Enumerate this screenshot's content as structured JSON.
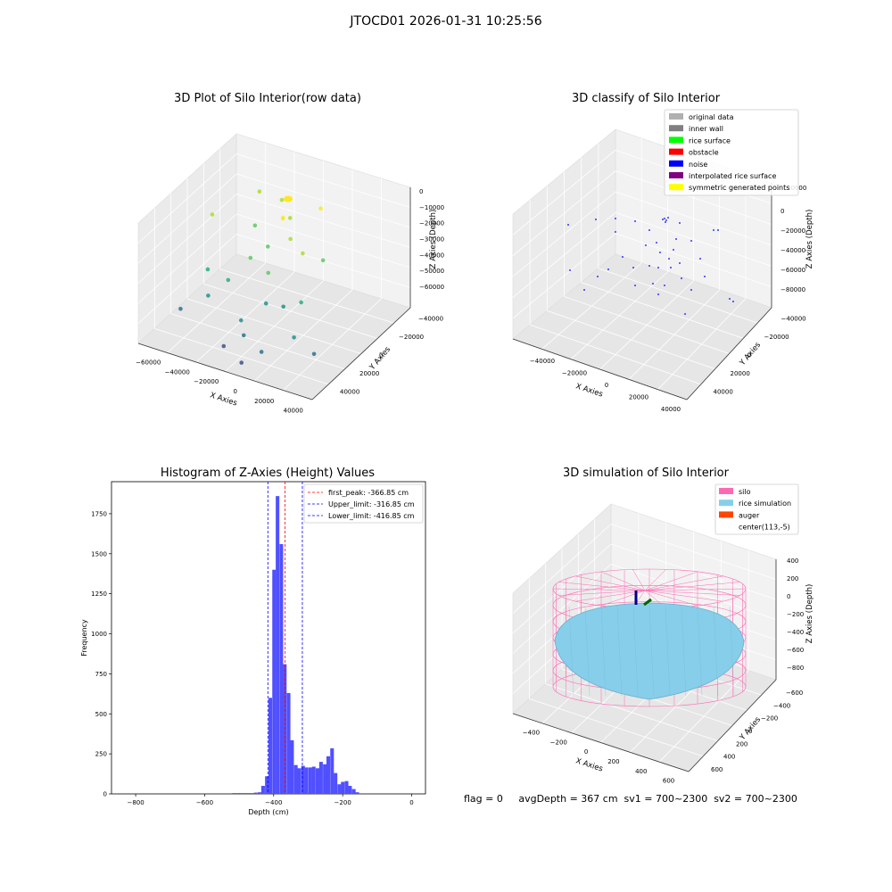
{
  "suptitle": "JTOCD01 2026-01-31 10:25:56",
  "info_text": "flag = 0     avgDepth = 367 cm  sv1 = 700~2300  sv2 = 700~2300",
  "colors": {
    "original": "#b0b0b0",
    "inner_wall": "#808080",
    "rice_surface": "#00ff00",
    "obstacle": "#ff0000",
    "noise": "#0000ff",
    "interp": "#800080",
    "sym": "#ffff00",
    "silo": "#ff69b4",
    "rice_sim": "#87ceeb",
    "auger": "#ff4500",
    "hist": "#5050ff"
  },
  "chart_data": [
    {
      "type": "scatter",
      "title": "3D Plot of Silo Interior(row data)",
      "xlabel": "X Axies",
      "ylabel": "Y Axies",
      "zlabel": "Z Axies (Depth)",
      "x_ticks": [
        "−60000",
        "−40000",
        "−20000",
        "0",
        "20000",
        "40000"
      ],
      "y_ticks": [
        "40000",
        "20000",
        "0",
        "−20000",
        "−40000"
      ],
      "z_ticks": [
        "0",
        "−10000",
        "−20000",
        "−30000",
        "−40000",
        "−50000",
        "−60000"
      ],
      "points": [
        {
          "x": -5000,
          "y": 5000,
          "z": -4000
        },
        {
          "x": -5000,
          "y": 5000,
          "z": -4500
        },
        {
          "x": -40000,
          "y": 35000,
          "z": -15000
        },
        {
          "x": -22000,
          "y": 30000,
          "z": -12000
        },
        {
          "x": -55000,
          "y": 10000,
          "z": -20000
        },
        {
          "x": 5000,
          "y": 28000,
          "z": -8000
        },
        {
          "x": -10000,
          "y": 20000,
          "z": -14000
        },
        {
          "x": -30000,
          "y": 15000,
          "z": -22000
        },
        {
          "x": -2000,
          "y": 8000,
          "z": -18000
        },
        {
          "x": -15000,
          "y": 5000,
          "z": -25000
        },
        {
          "x": 10000,
          "y": 2000,
          "z": -20000
        },
        {
          "x": -20000,
          "y": -5000,
          "z": -28000
        },
        {
          "x": -5000,
          "y": -10000,
          "z": -30000
        },
        {
          "x": 15000,
          "y": 15000,
          "z": -30000
        },
        {
          "x": 20000,
          "y": -15000,
          "z": -38000
        },
        {
          "x": -45000,
          "y": -10000,
          "z": -40000
        },
        {
          "x": -25000,
          "y": -20000,
          "z": -35000
        },
        {
          "x": 0,
          "y": -20000,
          "z": -42000
        },
        {
          "x": 5000,
          "y": -10000,
          "z": -48000
        },
        {
          "x": -10000,
          "y": -30000,
          "z": -50000
        },
        {
          "x": -35000,
          "y": -25000,
          "z": -45000
        },
        {
          "x": 25000,
          "y": -30000,
          "z": -50000
        },
        {
          "x": -5000,
          "y": -35000,
          "z": -55000
        },
        {
          "x": 10000,
          "y": -40000,
          "z": -58000
        },
        {
          "x": 35000,
          "y": -25000,
          "z": -60000
        },
        {
          "x": -15000,
          "y": -40000,
          "z": -62000
        },
        {
          "x": 0,
          "y": -45000,
          "z": -65000
        },
        {
          "x": -50000,
          "y": -30000,
          "z": -55000
        }
      ]
    },
    {
      "type": "scatter",
      "title": "3D classify of Silo Interior",
      "xlabel": "X Axies",
      "ylabel": "Y Axies",
      "zlabel": "Z Axies (Depth)",
      "x_ticks": [
        "−40000",
        "−20000",
        "0",
        "20000",
        "40000"
      ],
      "y_ticks": [
        "40000",
        "20000",
        "0",
        "−20000",
        "−40000"
      ],
      "z_ticks": [
        "0",
        "−20000",
        "−40000",
        "−60000",
        "−80000"
      ],
      "z_top_tick": "20000",
      "legend": [
        {
          "label": "original data",
          "color": "#b0b0b0"
        },
        {
          "label": "inner wall",
          "color": "#808080"
        },
        {
          "label": "rice surface",
          "color": "#00ff00"
        },
        {
          "label": "obstacle",
          "color": "#ff0000"
        },
        {
          "label": "noise",
          "color": "#0000ff"
        },
        {
          "label": "interpolated rice surface",
          "color": "#800080"
        },
        {
          "label": "symmetric generated points",
          "color": "#ffff00"
        }
      ]
    },
    {
      "type": "bar",
      "title": "Histogram of Z-Axies (Height) Values",
      "xlabel": "Depth (cm)",
      "ylabel": "Frequency",
      "xlim": [
        -870,
        40
      ],
      "ylim": [
        0,
        1950
      ],
      "x_ticks": [
        -800,
        -600,
        -400,
        -200,
        0
      ],
      "x_tick_labels": [
        "−800",
        "−600",
        "−400",
        "−200",
        "0"
      ],
      "y_ticks": [
        0,
        250,
        500,
        750,
        1000,
        1250,
        1500,
        1750
      ],
      "bin_width": 10.5,
      "bins": [
        {
          "x": -520,
          "v": 5
        },
        {
          "x": -509,
          "v": 5
        },
        {
          "x": -499,
          "v": 5
        },
        {
          "x": -488,
          "v": 5
        },
        {
          "x": -478,
          "v": 5
        },
        {
          "x": -467,
          "v": 5
        },
        {
          "x": -457,
          "v": 8
        },
        {
          "x": -446,
          "v": 10
        },
        {
          "x": -436,
          "v": 50
        },
        {
          "x": -425,
          "v": 110
        },
        {
          "x": -415,
          "v": 600
        },
        {
          "x": -404,
          "v": 1400
        },
        {
          "x": -394,
          "v": 1860
        },
        {
          "x": -383,
          "v": 1560
        },
        {
          "x": -373,
          "v": 810
        },
        {
          "x": -362,
          "v": 630
        },
        {
          "x": -352,
          "v": 335
        },
        {
          "x": -341,
          "v": 180
        },
        {
          "x": -331,
          "v": 160
        },
        {
          "x": -320,
          "v": 175
        },
        {
          "x": -310,
          "v": 165
        },
        {
          "x": -299,
          "v": 165
        },
        {
          "x": -289,
          "v": 170
        },
        {
          "x": -278,
          "v": 160
        },
        {
          "x": -268,
          "v": 200
        },
        {
          "x": -257,
          "v": 185
        },
        {
          "x": -247,
          "v": 235
        },
        {
          "x": -236,
          "v": 285
        },
        {
          "x": -226,
          "v": 130
        },
        {
          "x": -215,
          "v": 60
        },
        {
          "x": -205,
          "v": 75
        },
        {
          "x": -194,
          "v": 80
        },
        {
          "x": -184,
          "v": 50
        },
        {
          "x": -173,
          "v": 30
        },
        {
          "x": -163,
          "v": 10
        }
      ],
      "vlines": [
        {
          "label": "first_peak: -366.85 cm",
          "x": -366.85,
          "color": "#ff0000"
        },
        {
          "label": "Upper_limit: -316.85 cm",
          "x": -316.85,
          "color": "#0000ff"
        },
        {
          "label": "Lower_limit: -416.85 cm",
          "x": -416.85,
          "color": "#0000ff"
        }
      ]
    },
    {
      "type": "scatter",
      "title": "3D simulation of Silo Interior",
      "xlabel": "X Axies",
      "ylabel": "Y Axies",
      "zlabel": "Z Axies (Depth)",
      "x_ticks": [
        "−400",
        "−200",
        "0",
        "200",
        "400",
        "600"
      ],
      "y_ticks": [
        "600",
        "400",
        "200",
        "0",
        "−200",
        "−400",
        "−600"
      ],
      "z_ticks": [
        "400",
        "200",
        "0",
        "−200",
        "−400",
        "−600",
        "−800"
      ],
      "legend": [
        {
          "label": "silo",
          "color": "#ff69b4"
        },
        {
          "label": "rice simulation",
          "color": "#87ceeb"
        },
        {
          "label": "auger",
          "color": "#ff4500"
        },
        {
          "label": "center(113,-5)",
          "color": ""
        }
      ]
    }
  ]
}
